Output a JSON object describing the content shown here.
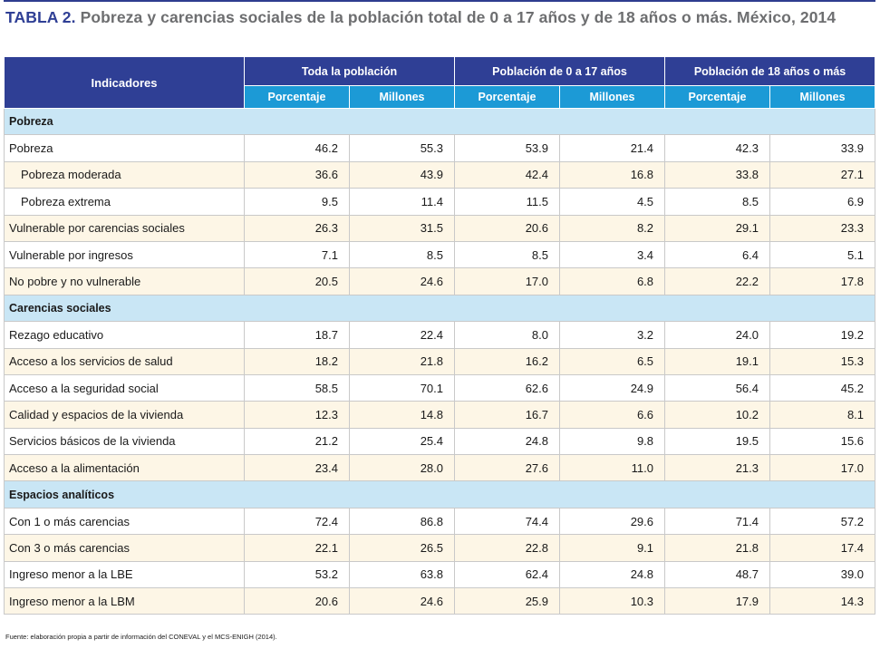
{
  "title": {
    "lead": "TABLA 2.",
    "text": "Pobreza y carencias sociales de la población total de 0 a 17 años y de 18 años o más. México, 2014"
  },
  "table": {
    "indicator_header": "Indicadores",
    "groups": [
      "Toda la población",
      "Población de 0 a 17 años",
      "Población de 18 años o más"
    ],
    "subheaders": [
      "Porcentaje",
      "Millones",
      "Porcentaje",
      "Millones",
      "Porcentaje",
      "Millones"
    ],
    "rows": [
      {
        "type": "section",
        "label": "Pobreza"
      },
      {
        "type": "data",
        "style": "white",
        "label": "Pobreza",
        "values": [
          "46.2",
          "55.3",
          "53.9",
          "21.4",
          "42.3",
          "33.9"
        ]
      },
      {
        "type": "data",
        "style": "cream",
        "sub": true,
        "label": "Pobreza moderada",
        "values": [
          "36.6",
          "43.9",
          "42.4",
          "16.8",
          "33.8",
          "27.1"
        ]
      },
      {
        "type": "data",
        "style": "white",
        "sub": true,
        "label": "Pobreza extrema",
        "values": [
          "9.5",
          "11.4",
          "11.5",
          "4.5",
          "8.5",
          "6.9"
        ]
      },
      {
        "type": "data",
        "style": "cream",
        "label": "Vulnerable por carencias sociales",
        "values": [
          "26.3",
          "31.5",
          "20.6",
          "8.2",
          "29.1",
          "23.3"
        ]
      },
      {
        "type": "data",
        "style": "white",
        "label": "Vulnerable por ingresos",
        "values": [
          "7.1",
          "8.5",
          "8.5",
          "3.4",
          "6.4",
          "5.1"
        ]
      },
      {
        "type": "data",
        "style": "cream",
        "label": "No pobre y no vulnerable",
        "values": [
          "20.5",
          "24.6",
          "17.0",
          "6.8",
          "22.2",
          "17.8"
        ]
      },
      {
        "type": "section",
        "label": "Carencias sociales"
      },
      {
        "type": "data",
        "style": "white",
        "label": "Rezago educativo",
        "values": [
          "18.7",
          "22.4",
          "8.0",
          "3.2",
          "24.0",
          "19.2"
        ]
      },
      {
        "type": "data",
        "style": "cream",
        "label": "Acceso a los servicios de salud",
        "values": [
          "18.2",
          "21.8",
          "16.2",
          "6.5",
          "19.1",
          "15.3"
        ]
      },
      {
        "type": "data",
        "style": "white",
        "label": "Acceso a la seguridad social",
        "values": [
          "58.5",
          "70.1",
          "62.6",
          "24.9",
          "56.4",
          "45.2"
        ]
      },
      {
        "type": "data",
        "style": "cream",
        "label": "Calidad y espacios de la vivienda",
        "values": [
          "12.3",
          "14.8",
          "16.7",
          "6.6",
          "10.2",
          "8.1"
        ]
      },
      {
        "type": "data",
        "style": "white",
        "label": "Servicios básicos de la vivienda",
        "values": [
          "21.2",
          "25.4",
          "24.8",
          "9.8",
          "19.5",
          "15.6"
        ]
      },
      {
        "type": "data",
        "style": "cream",
        "label": "Acceso a la alimentación",
        "values": [
          "23.4",
          "28.0",
          "27.6",
          "11.0",
          "21.3",
          "17.0"
        ]
      },
      {
        "type": "section",
        "label": "Espacios analíticos"
      },
      {
        "type": "data",
        "style": "white",
        "label": "Con 1 o más carencias",
        "values": [
          "72.4",
          "86.8",
          "74.4",
          "29.6",
          "71.4",
          "57.2"
        ]
      },
      {
        "type": "data",
        "style": "cream",
        "label": "Con 3 o más carencias",
        "values": [
          "22.1",
          "26.5",
          "22.8",
          "9.1",
          "21.8",
          "17.4"
        ]
      },
      {
        "type": "data",
        "style": "white",
        "label": "Ingreso menor a la LBE",
        "values": [
          "53.2",
          "63.8",
          "62.4",
          "24.8",
          "48.7",
          "39.0"
        ]
      },
      {
        "type": "data",
        "style": "cream",
        "label": "Ingreso menor a la LBM",
        "values": [
          "20.6",
          "24.6",
          "25.9",
          "10.3",
          "17.9",
          "14.3"
        ]
      }
    ]
  },
  "source": "Fuente: elaboración propia a partir de información del CONEVAL y el MCS-ENIGH (2014)."
}
